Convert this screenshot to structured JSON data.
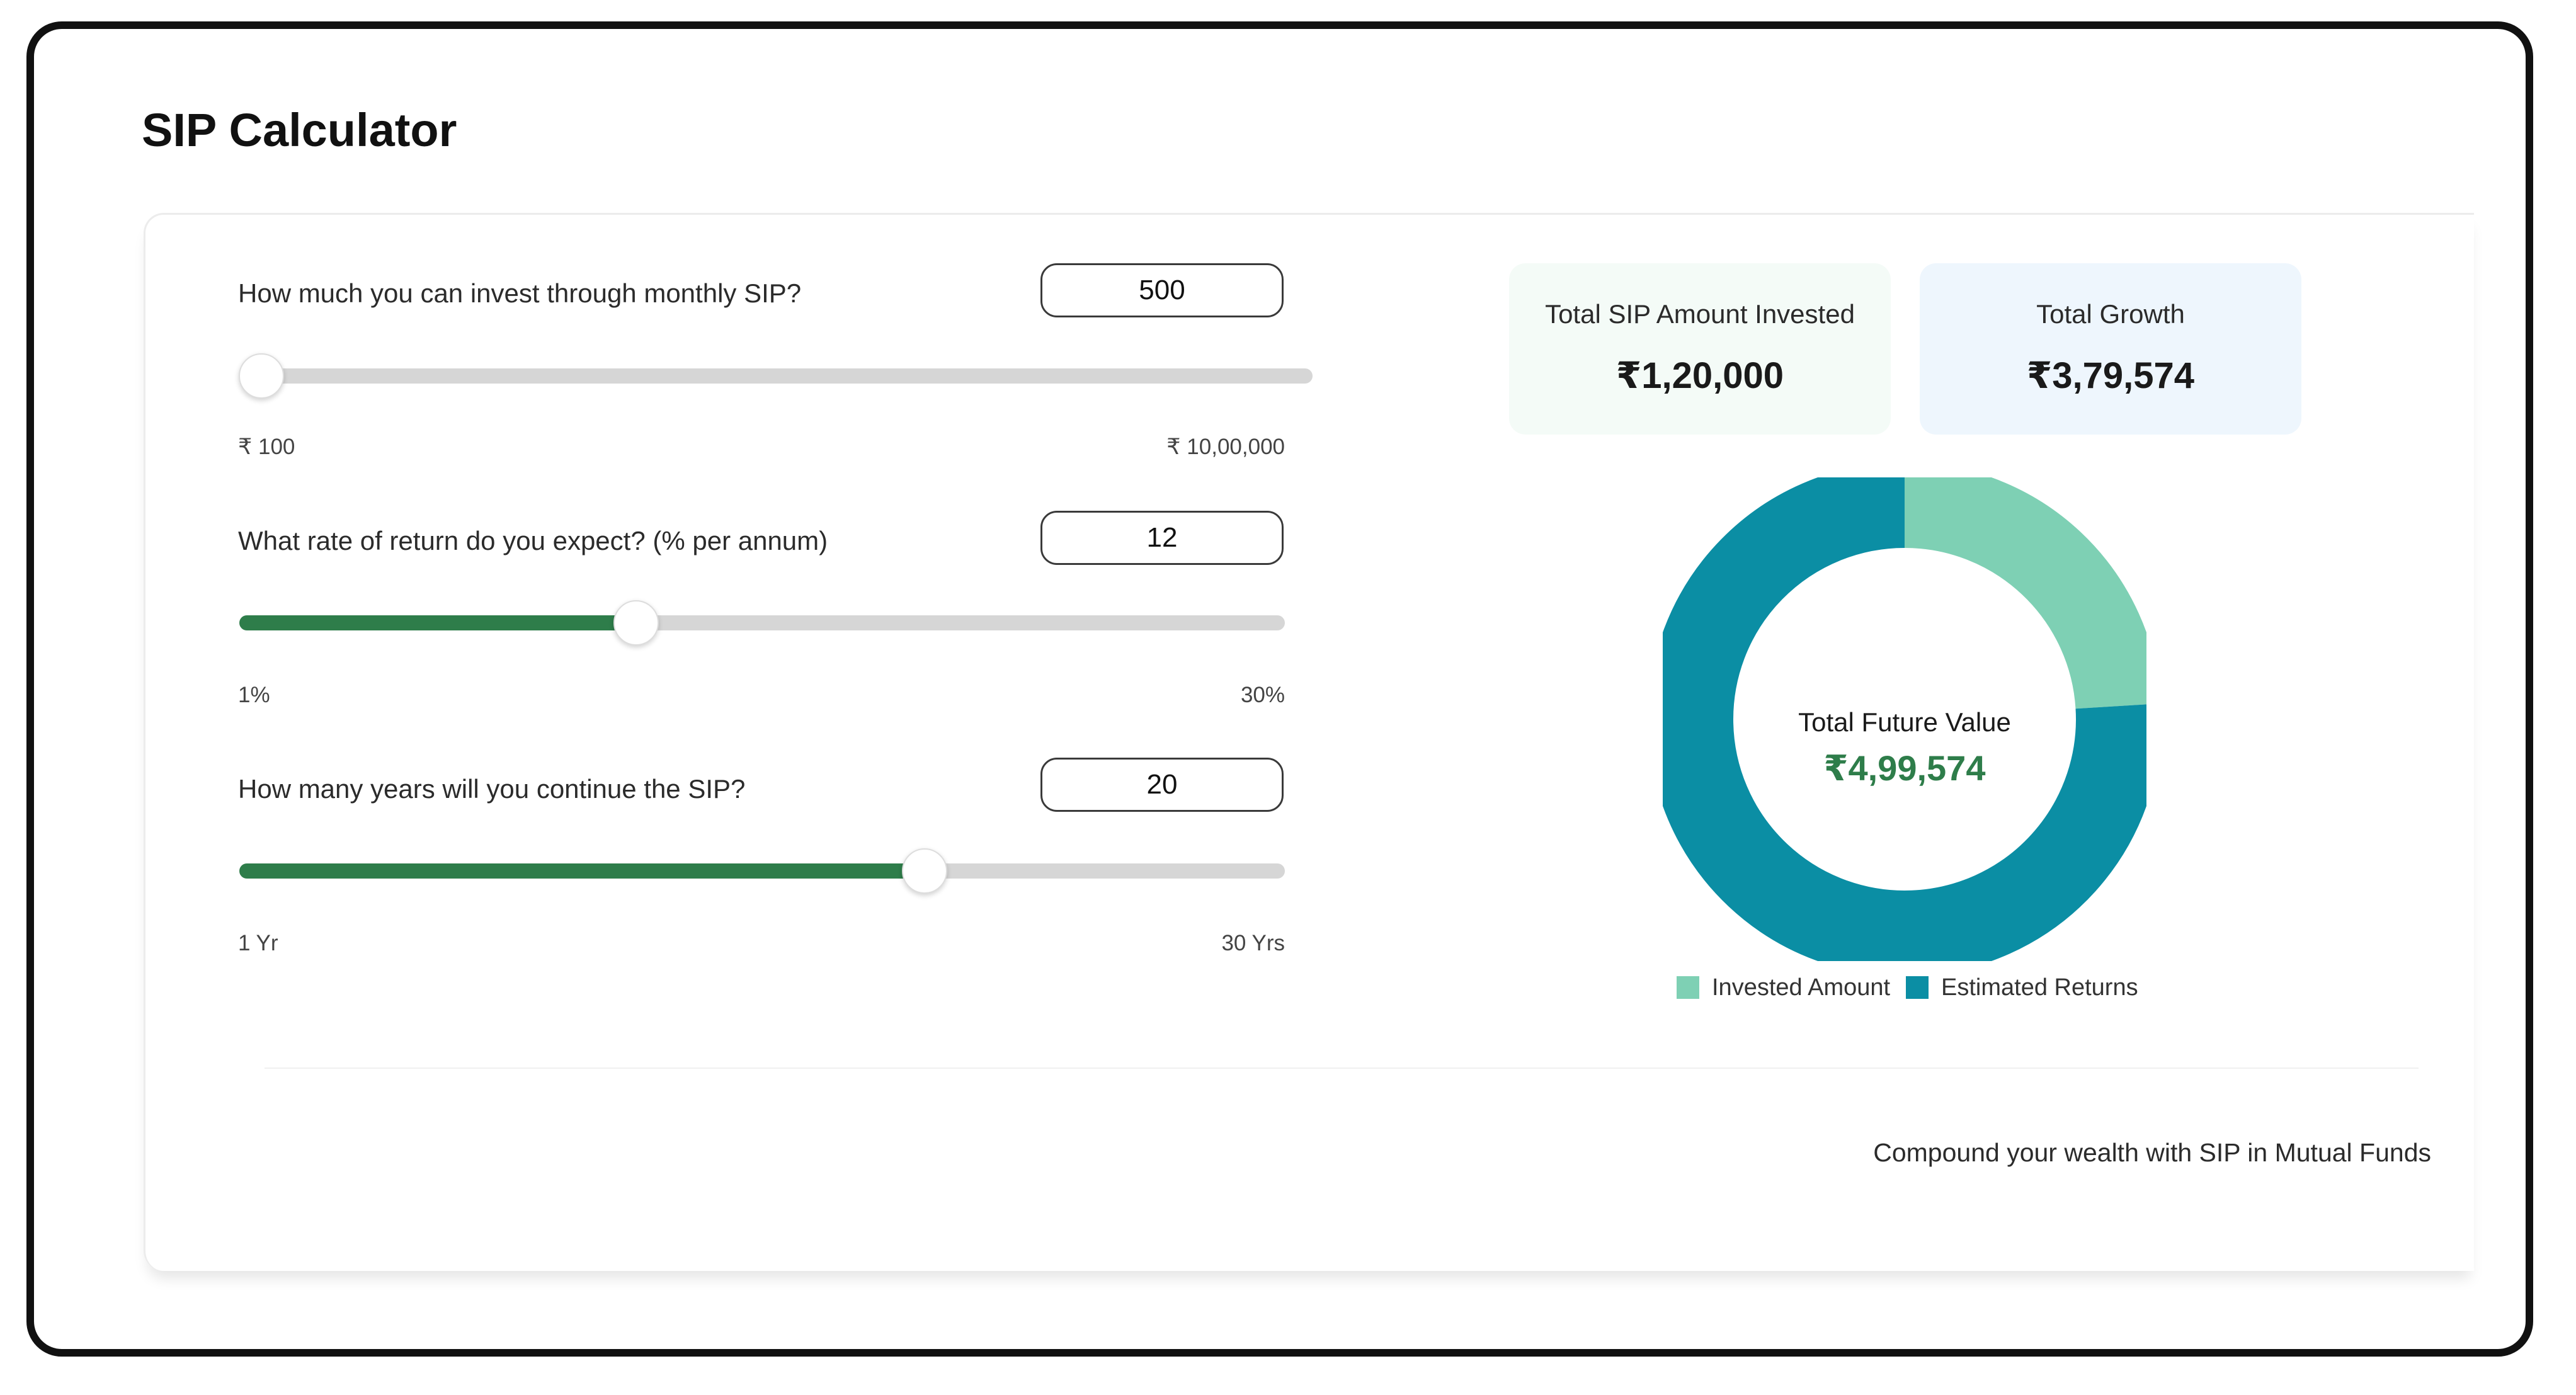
{
  "page": {
    "title": "SIP Calculator"
  },
  "inputs": [
    {
      "question": "How much you can invest through monthly SIP?",
      "value": "500",
      "min_label": "₹ 100",
      "max_label": "₹ 10,00,000",
      "slider_fraction": 0.0004
    },
    {
      "question": "What rate of return do you expect? (% per annum)",
      "value": "12",
      "min_label": "1%",
      "max_label": "30%",
      "slider_fraction": 0.3793
    },
    {
      "question": "How many years will you continue the SIP?",
      "value": "20",
      "min_label": "1 Yr",
      "max_label": "30 Yrs",
      "slider_fraction": 0.6552
    }
  ],
  "summary": {
    "invested": {
      "label": "Total SIP Amount Invested",
      "value": "₹1,20,000"
    },
    "growth": {
      "label": "Total Growth",
      "value": "₹3,79,574"
    }
  },
  "chart_data": {
    "type": "pie",
    "categories": [
      "Invested Amount",
      "Estimated Returns"
    ],
    "values": [
      120000,
      379574
    ],
    "colors": [
      "#7ed0b4",
      "#0b8ea4"
    ],
    "center_label": "Total Future Value",
    "center_value": "₹4,99,574",
    "legend_position": "bottom"
  },
  "footer": {
    "text": "Compound your wealth with SIP in Mutual Funds"
  },
  "colors": {
    "accent_green": "#2e7d4a",
    "track_gray": "#d6d6d6",
    "invested_color": "#7ed0b4",
    "returns_color": "#0b8ea4"
  }
}
